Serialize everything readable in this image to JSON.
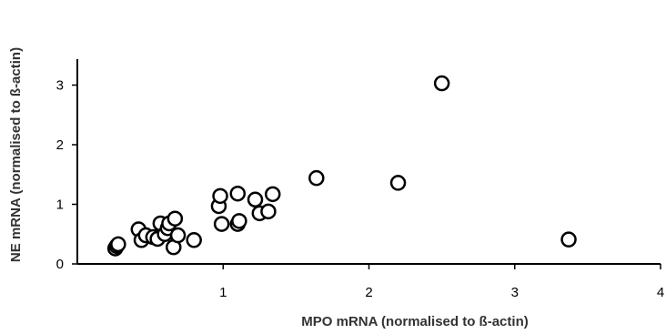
{
  "chart_data": {
    "type": "scatter",
    "xlabel": "MPO mRNA (normalised to ß-actin)",
    "ylabel": "NE mRNA (normalised to ß-actin)",
    "xlim": [
      0,
      4
    ],
    "ylim": [
      0,
      3.4
    ],
    "x_ticks": [
      "1",
      "2",
      "3",
      "4"
    ],
    "y_ticks": [
      "0",
      "1",
      "2",
      "3"
    ],
    "grid": false,
    "marker": "open-circle",
    "series": [
      {
        "points": [
          {
            "x": 0.26,
            "y": 0.26
          },
          {
            "x": 0.27,
            "y": 0.3
          },
          {
            "x": 0.28,
            "y": 0.33
          },
          {
            "x": 0.42,
            "y": 0.58
          },
          {
            "x": 0.44,
            "y": 0.4
          },
          {
            "x": 0.47,
            "y": 0.48
          },
          {
            "x": 0.52,
            "y": 0.45
          },
          {
            "x": 0.55,
            "y": 0.42
          },
          {
            "x": 0.57,
            "y": 0.68
          },
          {
            "x": 0.6,
            "y": 0.5
          },
          {
            "x": 0.62,
            "y": 0.6
          },
          {
            "x": 0.63,
            "y": 0.68
          },
          {
            "x": 0.66,
            "y": 0.28
          },
          {
            "x": 0.67,
            "y": 0.76
          },
          {
            "x": 0.69,
            "y": 0.48
          },
          {
            "x": 0.8,
            "y": 0.4
          },
          {
            "x": 0.97,
            "y": 0.97
          },
          {
            "x": 0.98,
            "y": 1.14
          },
          {
            "x": 0.99,
            "y": 0.67
          },
          {
            "x": 1.1,
            "y": 0.67
          },
          {
            "x": 1.1,
            "y": 1.18
          },
          {
            "x": 1.11,
            "y": 0.72
          },
          {
            "x": 1.22,
            "y": 1.08
          },
          {
            "x": 1.25,
            "y": 0.85
          },
          {
            "x": 1.31,
            "y": 0.88
          },
          {
            "x": 1.34,
            "y": 1.17
          },
          {
            "x": 1.64,
            "y": 1.44
          },
          {
            "x": 2.2,
            "y": 1.36
          },
          {
            "x": 2.5,
            "y": 3.03
          },
          {
            "x": 3.37,
            "y": 0.41
          }
        ]
      }
    ]
  }
}
